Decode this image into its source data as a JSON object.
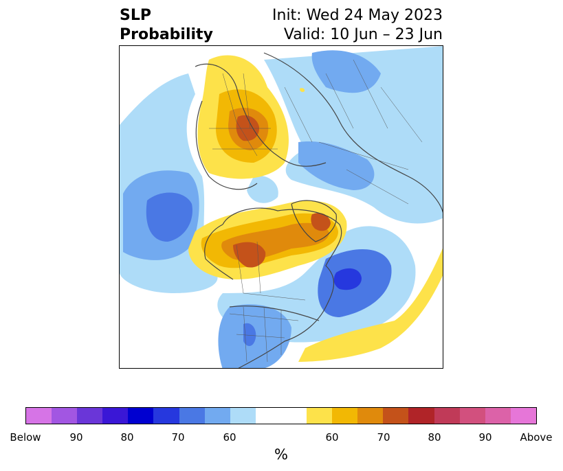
{
  "title": {
    "left_line1": "SLP",
    "left_line2": "Probability",
    "right_line1": "Init: Wed 24 May 2023",
    "right_line2": "Valid: 10 Jun – 23 Jun"
  },
  "colorbar": {
    "colors": [
      "#d674e6",
      "#a256e2",
      "#6a36d8",
      "#3a17d6",
      "#0000d0",
      "#2638de",
      "#4a78e4",
      "#72aaf0",
      "#aedcf8",
      "#ffffff",
      "#fde24a",
      "#f2b804",
      "#e08a0c",
      "#c4521a",
      "#b02428",
      "#c03a58",
      "#d2507e",
      "#dc62a8",
      "#e676d8"
    ],
    "tick_labels": [
      "Below",
      "90",
      "80",
      "70",
      "60",
      "60",
      "70",
      "80",
      "90",
      "Above"
    ],
    "unit": "%"
  },
  "map": {
    "projection": "north-polar-stereographic",
    "variable": "sea-level-pressure-probability"
  }
}
